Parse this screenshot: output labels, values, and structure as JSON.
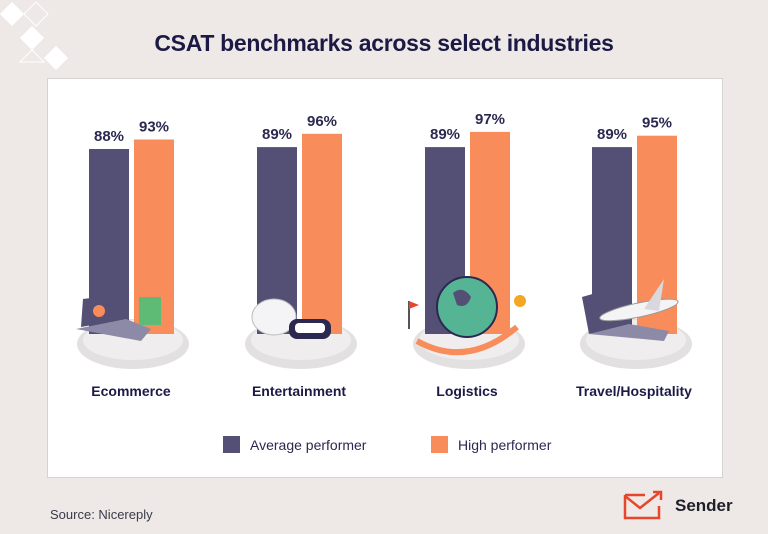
{
  "chart_data": {
    "type": "bar",
    "title": "CSAT benchmarks across select industries",
    "categories": [
      "Ecommerce",
      "Entertainment",
      "Logistics",
      "Travel/Hospitality"
    ],
    "series": [
      {
        "name": "Average performer",
        "values": [
          88,
          89,
          89,
          89
        ],
        "color": "#534f75"
      },
      {
        "name": "High performer",
        "values": [
          93,
          96,
          97,
          95
        ],
        "color": "#f98c5b"
      }
    ],
    "data_labels": [
      [
        "88%",
        "89%",
        "89%",
        "89%"
      ],
      [
        "93%",
        "96%",
        "97%",
        "95%"
      ]
    ],
    "legend": "bottom",
    "grid": false
  },
  "source": "Source: Nicereply",
  "brand": "Sender",
  "icons": [
    "laptop-shopping-bag-icon",
    "gamepad-vr-headset-icon",
    "globe-map-pin-icon",
    "laptop-airplane-icon"
  ]
}
